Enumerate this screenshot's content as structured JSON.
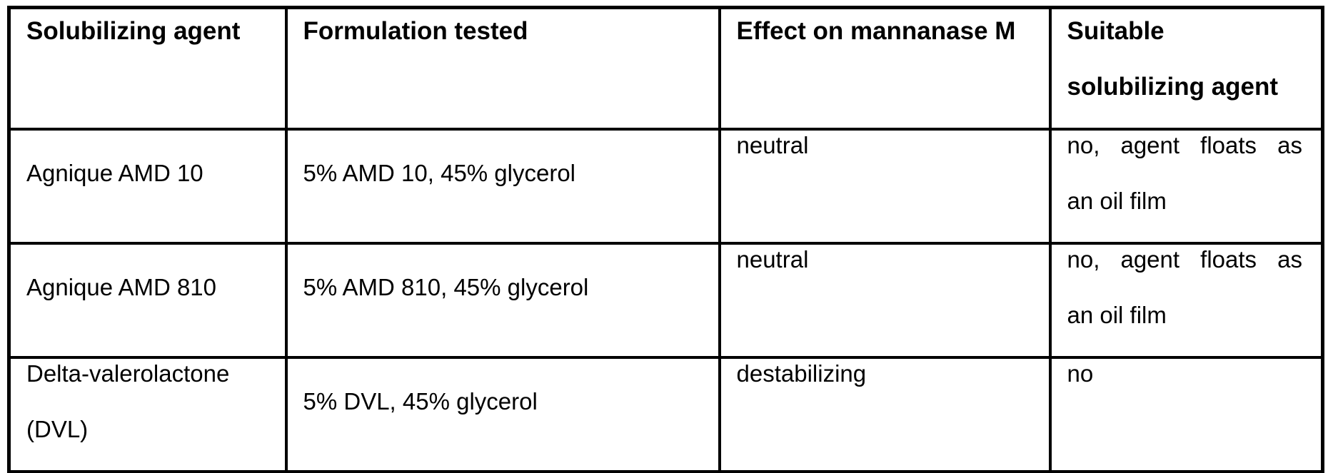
{
  "colors": {
    "border": "#000000",
    "text": "#000000",
    "background": "#ffffff"
  },
  "table": {
    "columns": [
      {
        "lines": [
          "Solubilizing agent"
        ]
      },
      {
        "lines": [
          "Formulation tested"
        ]
      },
      {
        "lines": [
          "Effect on mannanase M"
        ]
      },
      {
        "lines": [
          "Suitable",
          "solubilizing agent"
        ]
      }
    ],
    "rows": [
      {
        "cells": [
          {
            "lines": [
              "Agnique AMD 10"
            ]
          },
          {
            "lines": [
              "5% AMD 10, 45% glycerol"
            ]
          },
          {
            "lines": [
              "neutral"
            ]
          },
          {
            "lines": [
              "no, agent floats as",
              "an oil film"
            ],
            "justify": true
          }
        ]
      },
      {
        "cells": [
          {
            "lines": [
              "Agnique AMD 810"
            ]
          },
          {
            "lines": [
              "5% AMD 810, 45% glycerol"
            ]
          },
          {
            "lines": [
              "neutral"
            ]
          },
          {
            "lines": [
              "no, agent floats as",
              "an oil film"
            ],
            "justify": true
          }
        ]
      },
      {
        "cells": [
          {
            "lines": [
              "Delta-valerolactone",
              "(DVL)"
            ]
          },
          {
            "lines": [
              "5% DVL, 45% glycerol"
            ]
          },
          {
            "lines": [
              "destabilizing"
            ]
          },
          {
            "lines": [
              "no"
            ]
          }
        ]
      }
    ]
  }
}
